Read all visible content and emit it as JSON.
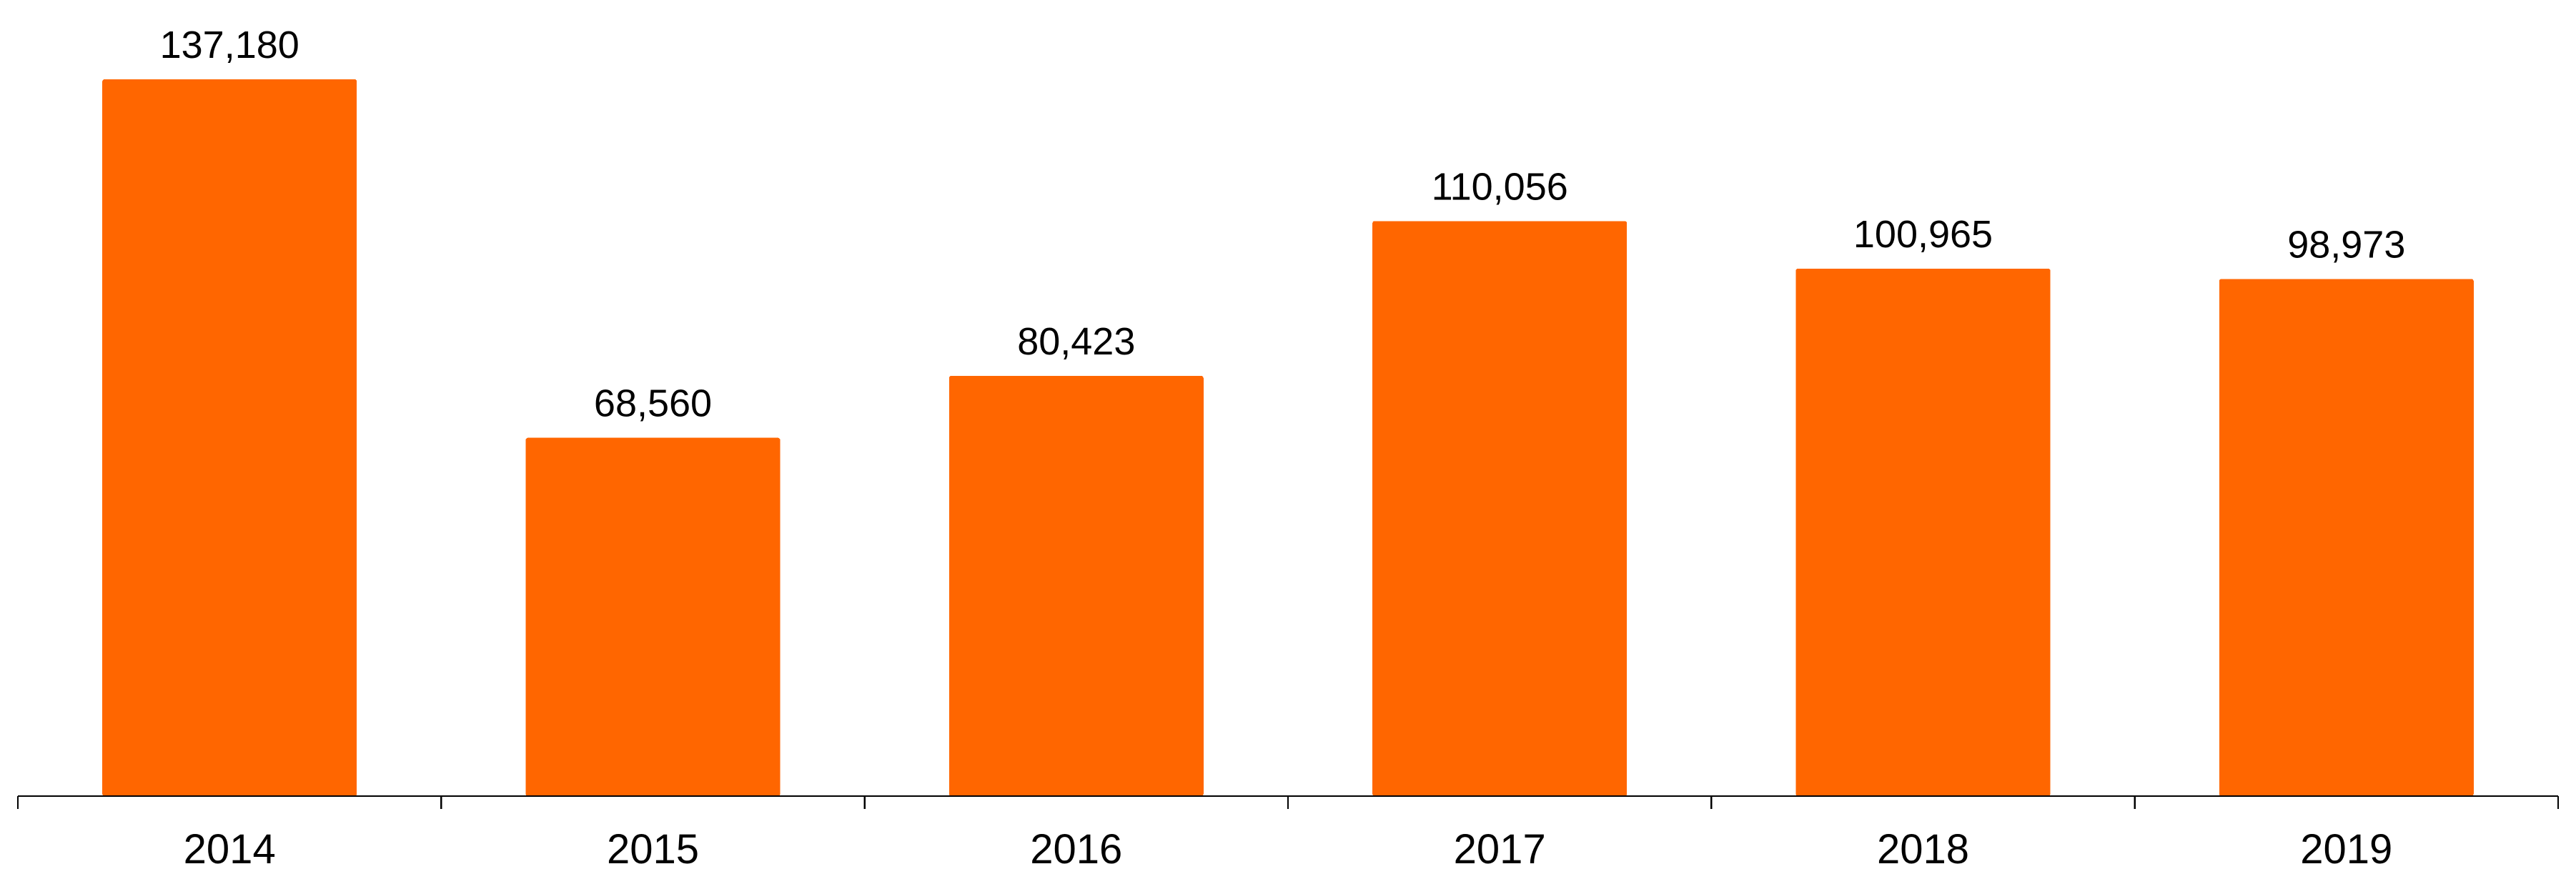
{
  "chart_data": {
    "type": "bar",
    "categories": [
      "2014",
      "2015",
      "2016",
      "2017",
      "2018",
      "2019"
    ],
    "values": [
      137180,
      68560,
      80423,
      110056,
      100965,
      98973
    ],
    "data_labels": [
      "137,180",
      "68,560",
      "80,423",
      "110,056",
      "100,965",
      "98,973"
    ],
    "title": "",
    "xlabel": "",
    "ylabel": "",
    "ylim": [
      0,
      137180
    ],
    "grid": false,
    "legend": "none",
    "bar_color": "#FF6600",
    "axis_color": "#000000"
  }
}
